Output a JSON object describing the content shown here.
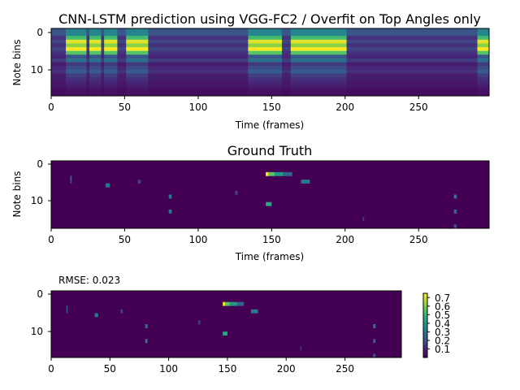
{
  "chart_data": [
    {
      "type": "heatmap",
      "title": "CNN-LSTM prediction using VGG-FC2 / Overfit on Top Angles only",
      "xlabel": "Time (frames)",
      "ylabel": "Note bins",
      "x_ticks": [
        "0",
        "50",
        "100",
        "150",
        "200",
        "250"
      ],
      "y_ticks": [
        "0",
        "10"
      ],
      "xlim": [
        0,
        298
      ],
      "ylim": [
        0,
        17
      ],
      "colormap": "viridis",
      "vmin": 0.0,
      "vmax": 0.75,
      "active_segments": [
        [
          10,
          24
        ],
        [
          26,
          34
        ],
        [
          36,
          45
        ],
        [
          51,
          66
        ],
        [
          134,
          157
        ],
        [
          163,
          201
        ],
        [
          290,
          298
        ]
      ],
      "row_profile": [
        0.33,
        0.35,
        0.52,
        0.72,
        0.62,
        0.75,
        0.55,
        0.2,
        0.28,
        0.14,
        0.18,
        0.22,
        0.15,
        0.12,
        0.1,
        0.08,
        0.05,
        0.04
      ],
      "background_rows": [
        0.2,
        0.2,
        0.12,
        0.16,
        0.12,
        0.16,
        0.12,
        0.1,
        0.14,
        0.08,
        0.1,
        0.12,
        0.08,
        0.08,
        0.06,
        0.06,
        0.03,
        0.03
      ]
    },
    {
      "type": "heatmap",
      "title": "Ground Truth",
      "xlabel": "Time (frames)",
      "ylabel": "Note bins",
      "x_ticks": [
        "0",
        "50",
        "100",
        "150",
        "200",
        "250"
      ],
      "y_ticks": [
        "0",
        "10"
      ],
      "xlim": [
        0,
        298
      ],
      "ylim": [
        0,
        17
      ],
      "colormap": "viridis",
      "vmin": 0.0,
      "vmax": 0.75,
      "points": [
        {
          "x": 13,
          "y": 4,
          "len": 1,
          "v": 0.25
        },
        {
          "x": 13,
          "y": 5,
          "len": 1,
          "v": 0.18
        },
        {
          "x": 37,
          "y": 6,
          "len": 3,
          "v": 0.3
        },
        {
          "x": 59,
          "y": 5,
          "len": 2,
          "v": 0.15
        },
        {
          "x": 80,
          "y": 9,
          "len": 2,
          "v": 0.3
        },
        {
          "x": 80,
          "y": 13,
          "len": 2,
          "v": 0.3
        },
        {
          "x": 125,
          "y": 8,
          "len": 2,
          "v": 0.15
        },
        {
          "x": 146,
          "y": 3,
          "len": 2,
          "v": 0.75
        },
        {
          "x": 148,
          "y": 3,
          "len": 4,
          "v": 0.55
        },
        {
          "x": 152,
          "y": 3,
          "len": 6,
          "v": 0.4
        },
        {
          "x": 158,
          "y": 3,
          "len": 6,
          "v": 0.25
        },
        {
          "x": 146,
          "y": 11,
          "len": 4,
          "v": 0.45
        },
        {
          "x": 170,
          "y": 5,
          "len": 6,
          "v": 0.3
        },
        {
          "x": 212,
          "y": 15,
          "len": 1,
          "v": 0.15
        },
        {
          "x": 274,
          "y": 9,
          "len": 2,
          "v": 0.3
        },
        {
          "x": 274,
          "y": 13,
          "len": 2,
          "v": 0.25
        },
        {
          "x": 274,
          "y": 17,
          "len": 2,
          "v": 0.2
        }
      ]
    },
    {
      "type": "heatmap",
      "title": "RMSE: 0.023",
      "xlabel": "",
      "ylabel": "",
      "x_ticks": [
        "0",
        "50",
        "100",
        "150",
        "200",
        "250"
      ],
      "y_ticks": [
        "0",
        "10"
      ],
      "xlim": [
        0,
        298
      ],
      "ylim": [
        0,
        17
      ],
      "colormap": "viridis",
      "vmin": 0.0,
      "vmax": 0.75,
      "colorbar_ticks": [
        "0.7",
        "0.6",
        "0.5",
        "0.4",
        "0.3",
        "0.2",
        "0.1"
      ],
      "colorbar_values": [
        0.7,
        0.6,
        0.5,
        0.4,
        0.3,
        0.2,
        0.1
      ],
      "points": [
        {
          "x": 13,
          "y": 4,
          "len": 1,
          "v": 0.25
        },
        {
          "x": 13,
          "y": 5,
          "len": 1,
          "v": 0.18
        },
        {
          "x": 37,
          "y": 6,
          "len": 3,
          "v": 0.3
        },
        {
          "x": 59,
          "y": 5,
          "len": 2,
          "v": 0.15
        },
        {
          "x": 80,
          "y": 9,
          "len": 2,
          "v": 0.3
        },
        {
          "x": 80,
          "y": 13,
          "len": 2,
          "v": 0.3
        },
        {
          "x": 125,
          "y": 8,
          "len": 2,
          "v": 0.15
        },
        {
          "x": 146,
          "y": 3,
          "len": 2,
          "v": 0.75
        },
        {
          "x": 148,
          "y": 3,
          "len": 4,
          "v": 0.55
        },
        {
          "x": 152,
          "y": 3,
          "len": 6,
          "v": 0.4
        },
        {
          "x": 158,
          "y": 3,
          "len": 6,
          "v": 0.25
        },
        {
          "x": 146,
          "y": 11,
          "len": 4,
          "v": 0.45
        },
        {
          "x": 170,
          "y": 5,
          "len": 6,
          "v": 0.3
        },
        {
          "x": 212,
          "y": 15,
          "len": 1,
          "v": 0.15
        },
        {
          "x": 274,
          "y": 9,
          "len": 2,
          "v": 0.3
        },
        {
          "x": 274,
          "y": 13,
          "len": 2,
          "v": 0.25
        },
        {
          "x": 274,
          "y": 17,
          "len": 2,
          "v": 0.2
        }
      ]
    }
  ]
}
